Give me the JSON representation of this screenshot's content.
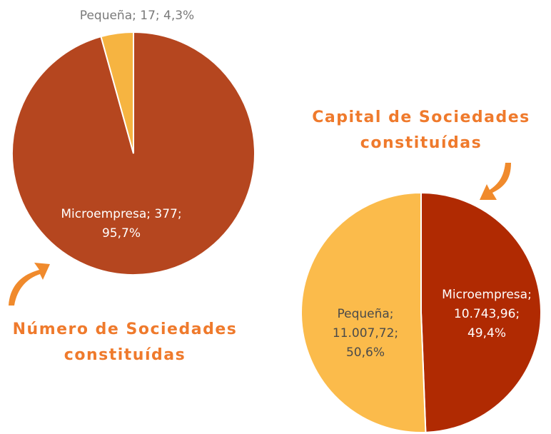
{
  "chart_data": [
    {
      "type": "pie",
      "title": "Número de Sociedades constituídas",
      "categories": [
        "Microempresa",
        "Pequeña"
      ],
      "values": [
        377,
        17
      ],
      "value_labels": [
        [
          "Microempresa; 377;",
          "95,7%"
        ],
        [
          "Pequeña; 17; 4,3%"
        ]
      ],
      "colors": [
        "#b5461f",
        "#f6b441"
      ]
    },
    {
      "type": "pie",
      "title": "Capital de Sociedades constituídas",
      "categories": [
        "Microempresa",
        "Pequeña"
      ],
      "values": [
        10743.96,
        11007.72
      ],
      "value_labels": [
        [
          "Microempresa;",
          "10.743,96;",
          "49,4%"
        ],
        [
          "Pequeña;",
          "11.007,72;",
          "50,6%"
        ]
      ],
      "colors": [
        "#b02a02",
        "#fbbb4b"
      ]
    }
  ]
}
